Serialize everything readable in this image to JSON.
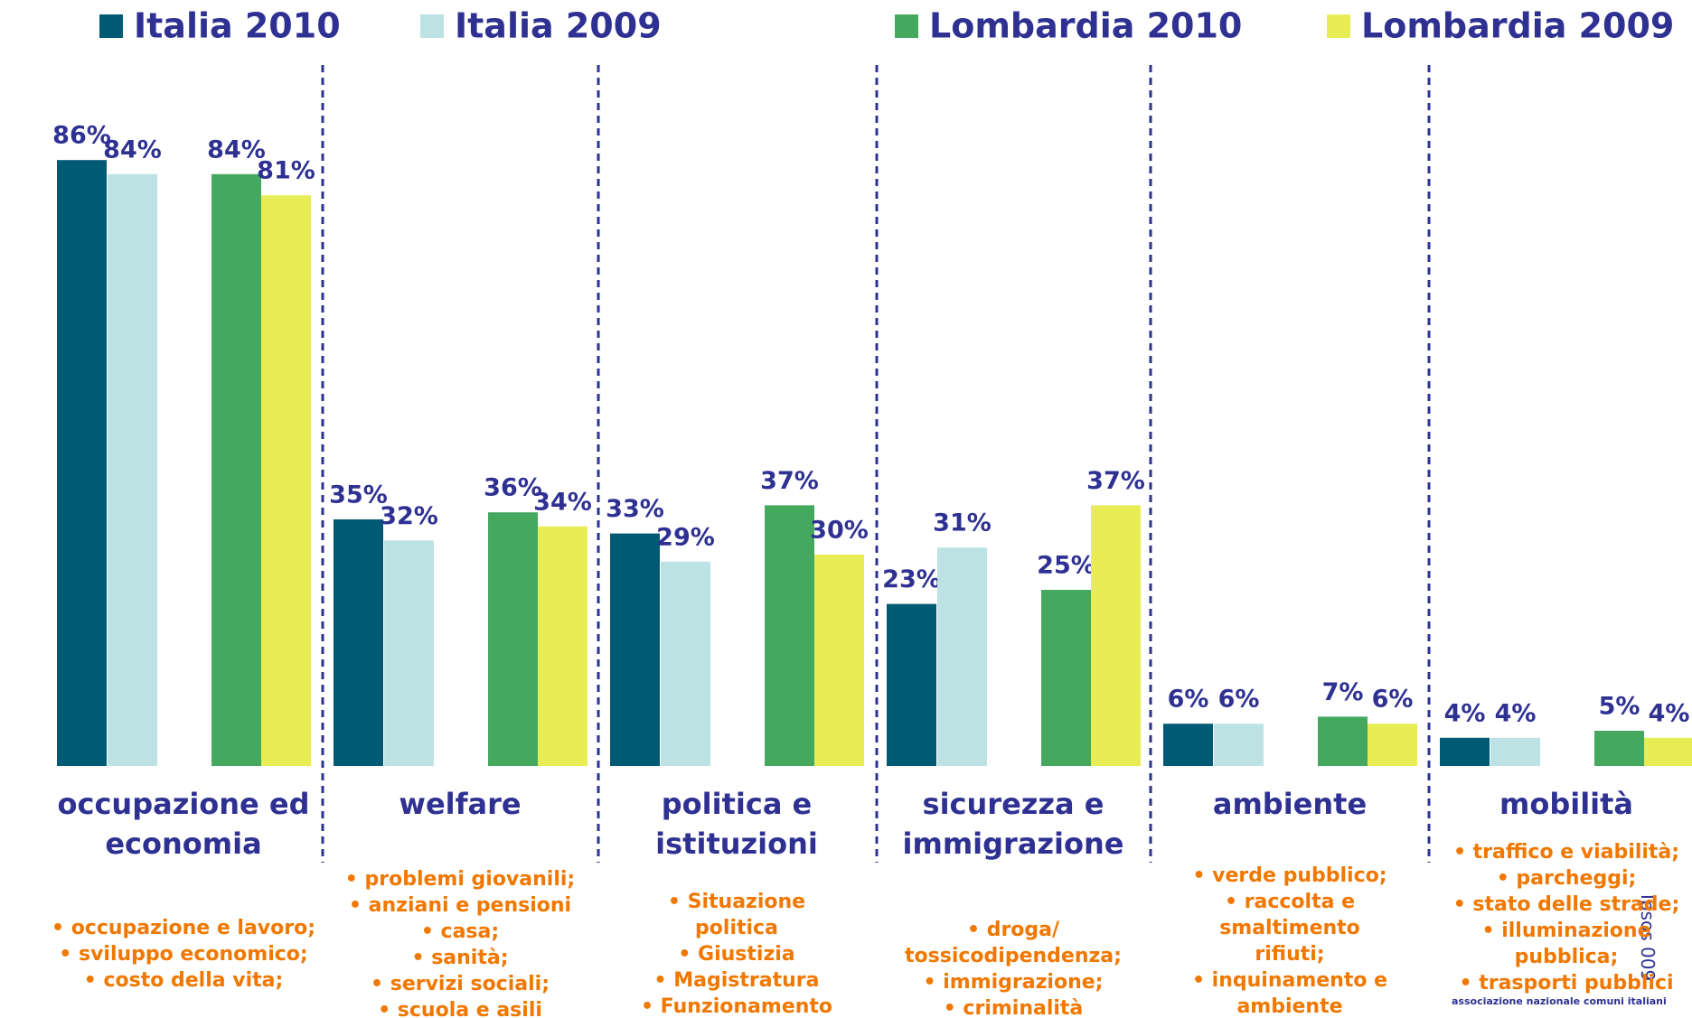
{
  "chart_data": {
    "type": "bar",
    "categories": [
      "occupazione ed economia",
      "welfare",
      "politica e istituzioni",
      "sicurezza e immigrazione",
      "ambiente",
      "mobilità"
    ],
    "series": [
      {
        "name": "Italia 2010",
        "color": "#005a73",
        "values": [
          86,
          35,
          33,
          23,
          6,
          4
        ],
        "value_labels": [
          "86%",
          "35%",
          "33%",
          "23%",
          "6%",
          "4%"
        ]
      },
      {
        "name": "Italia 2009",
        "color": "#bce2e3",
        "values": [
          84,
          32,
          29,
          31,
          6,
          4
        ],
        "value_labels": [
          "84%",
          "32%",
          "29%",
          "31%",
          "6%",
          "4%"
        ]
      },
      {
        "name": "Lombardia 2010",
        "color": "#45a85f",
        "values": [
          84,
          36,
          37,
          25,
          7,
          5
        ],
        "value_labels": [
          "84%",
          "36%",
          "37%",
          "25%",
          "7%",
          "5%"
        ]
      },
      {
        "name": "Lombardia 2009",
        "color": "#e8ec55",
        "values": [
          81,
          34,
          30,
          37,
          6,
          4
        ],
        "value_labels": [
          "81%",
          "34%",
          "30%",
          "37%",
          "6%",
          "4%"
        ]
      }
    ],
    "details": [
      [
        "• occupazione e lavoro;",
        "• sviluppo economico;",
        "• costo della vita;"
      ],
      [
        "• problemi giovanili;",
        "• anziani e pensioni",
        "• casa;",
        "• sanità;",
        "• servizi sociali;",
        "• scuola e asili"
      ],
      [
        "• Situazione politica",
        "• Giustizia",
        "• Magistratura",
        "• Funzionamento amministrazione"
      ],
      [
        "• droga/ tossicodipendenza;",
        "• immigrazione;",
        "• criminalità"
      ],
      [
        "• verde pubblico;",
        "• raccolta e smaltimento rifiuti;",
        "• inquinamento e ambiente"
      ],
      [
        "• traffico e viabilità;",
        "• parcheggi;",
        "• stato delle strade;",
        "• illuminazione pubblica;",
        "• trasporti pubblici"
      ]
    ],
    "source": "Ipsos 009",
    "logo_text": "associazione nazionale comuni italiani"
  }
}
